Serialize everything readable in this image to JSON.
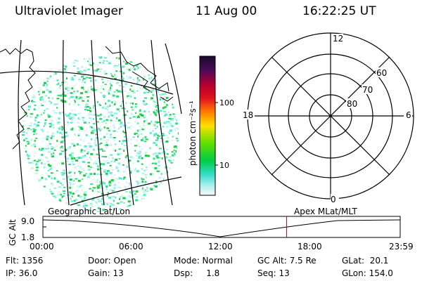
{
  "header": {
    "title": "Ultraviolet Imager",
    "date": "11 Aug 00",
    "time": "16:22:25 UT"
  },
  "colorbar": {
    "unit_label": "photon cm⁻²s⁻¹",
    "ticks": [
      "100",
      "10"
    ]
  },
  "polar": {
    "mlt_labels": [
      "12",
      "18",
      "6",
      "0"
    ],
    "lat_labels": [
      "60",
      "70",
      "80"
    ]
  },
  "timeline": {
    "left_label": "Geographic Lat/Lon",
    "right_label": "Apex MLat/MLT",
    "y_axis_title": "GC Alt",
    "y_ticks": [
      "9.0",
      "1.8"
    ],
    "x_ticks": [
      "00:00",
      "06:00",
      "12:00",
      "18:00",
      "23:59"
    ],
    "current_time_fraction": 0.6822
  },
  "status": {
    "flt": "Flt: 1356",
    "ip": "IP: 36.0",
    "door": "Door: Open",
    "gain": "Gain: 13",
    "mode": "Mode: Normal",
    "dsp": "Dsp:     1.8",
    "gc_alt": "GC Alt: 7.5 Re",
    "seq": "Seq: 13",
    "glat": "GLat:  20.1",
    "glon": "GLon: 154.0"
  },
  "colors": {
    "marker": "#cc0000",
    "dots": [
      "#22cc44",
      "#33dd88",
      "#55eecc",
      "#99f0e6",
      "#c8f4f0",
      "#e6f4f6"
    ]
  }
}
